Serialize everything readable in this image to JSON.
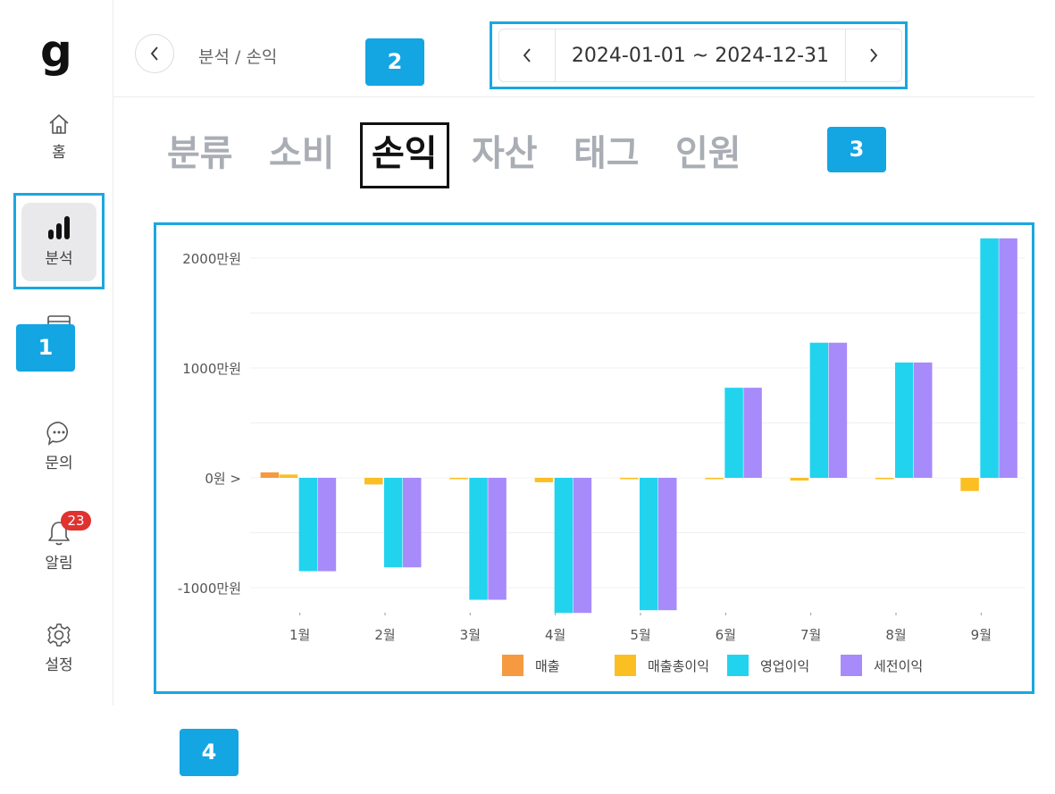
{
  "logo": "g",
  "sidebar": {
    "items": [
      {
        "label": "홈",
        "icon": "home-icon"
      },
      {
        "label": "분석",
        "icon": "bar-chart-icon"
      },
      {
        "label": "",
        "icon": "card-icon"
      },
      {
        "label": "문의",
        "icon": "chat-icon"
      },
      {
        "label": "알림",
        "icon": "bell-icon",
        "badge": "23"
      },
      {
        "label": "설정",
        "icon": "gear-icon"
      }
    ]
  },
  "header": {
    "breadcrumb": "분석  /  손익",
    "date_range": "2024-01-01 ~ 2024-12-31"
  },
  "tabs": [
    {
      "label": "분류"
    },
    {
      "label": "소비"
    },
    {
      "label": "손익"
    },
    {
      "label": "자산"
    },
    {
      "label": "태그"
    },
    {
      "label": "인원"
    }
  ],
  "callouts": [
    "1",
    "2",
    "3",
    "4"
  ],
  "colors": {
    "accent": "#14a5e3",
    "badge": "#e0322f",
    "series": [
      "#f59a40",
      "#fbbf24",
      "#22d3ee",
      "#a78bfa"
    ]
  },
  "chart_data": {
    "type": "bar",
    "categories": [
      "1월",
      "2월",
      "3월",
      "4월",
      "5월",
      "6월",
      "7월",
      "8월",
      "9월"
    ],
    "series": [
      {
        "name": "매출",
        "values": [
          50,
          0,
          0,
          0,
          0,
          0,
          0,
          0,
          0
        ]
      },
      {
        "name": "매출총이익",
        "values": [
          30,
          -60,
          -10,
          -40,
          -10,
          -10,
          -25,
          -10,
          -120
        ]
      },
      {
        "name": "영업이익",
        "values": [
          -850,
          -815,
          -1110,
          -1230,
          -1205,
          820,
          1230,
          1050,
          2180
        ]
      },
      {
        "name": "세전이익",
        "values": [
          -850,
          -815,
          -1110,
          -1230,
          -1205,
          820,
          1230,
          1050,
          2180
        ]
      }
    ],
    "y_ticks": [
      "2000만원",
      "1000만원",
      "0원 >",
      "-1000만원"
    ],
    "y_tick_values": [
      2000,
      1000,
      0,
      -1000
    ],
    "ylim": [
      -1300,
      2200
    ],
    "unit": "만원",
    "legend_position": "bottom"
  }
}
